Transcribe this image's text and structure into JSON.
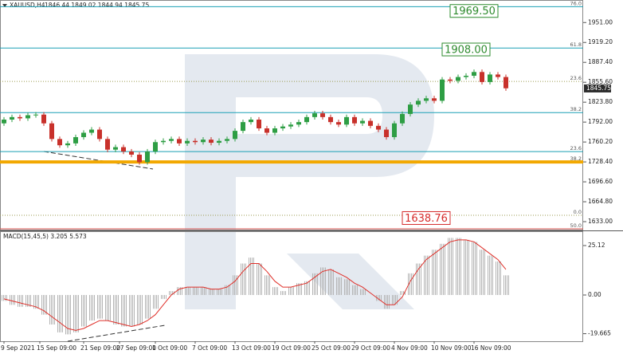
{
  "chart_data": [
    {
      "type": "candlestick",
      "symbol": "XAUUSD,H4",
      "quote": "1846.44 1849.02 1844.94 1845.75",
      "xlim": [
        -0.5,
        72.7
      ],
      "ylim": [
        1619,
        1987
      ],
      "grid": false,
      "up_color": "#2e9e44",
      "down_color": "#c8312b",
      "open": [
        1790,
        1796,
        1800,
        1798,
        1803,
        1804,
        1790,
        1765,
        1755,
        1758,
        1768,
        1775,
        1780,
        1765,
        1748,
        1752,
        1745,
        1740,
        1728,
        1745,
        1760,
        1762,
        1765,
        1758,
        1762,
        1760,
        1764,
        1759,
        1762,
        1765,
        1778,
        1792,
        1796,
        1782,
        1775,
        1782,
        1785,
        1788,
        1792,
        1800,
        1806,
        1800,
        1792,
        1788,
        1800,
        1790,
        1794,
        1786,
        1780,
        1768,
        1790,
        1805,
        1820,
        1826,
        1830,
        1826,
        1860,
        1858,
        1864,
        1866,
        1872,
        1856,
        1868,
        1864
      ],
      "high": [
        1800,
        1804,
        1804,
        1807,
        1808,
        1808,
        1794,
        1769,
        1762,
        1772,
        1779,
        1784,
        1784,
        1769,
        1756,
        1756,
        1749,
        1744,
        1749,
        1764,
        1766,
        1769,
        1769,
        1766,
        1766,
        1768,
        1768,
        1766,
        1769,
        1782,
        1796,
        1800,
        1800,
        1786,
        1786,
        1789,
        1792,
        1796,
        1804,
        1810,
        1810,
        1804,
        1796,
        1804,
        1804,
        1798,
        1798,
        1790,
        1784,
        1794,
        1809,
        1824,
        1830,
        1834,
        1834,
        1864,
        1864,
        1868,
        1870,
        1876,
        1876,
        1872,
        1872,
        1868
      ],
      "low": [
        1786,
        1792,
        1794,
        1794,
        1799,
        1786,
        1761,
        1751,
        1751,
        1754,
        1764,
        1771,
        1761,
        1744,
        1744,
        1741,
        1736,
        1724,
        1724,
        1741,
        1756,
        1758,
        1754,
        1754,
        1756,
        1756,
        1755,
        1755,
        1758,
        1761,
        1774,
        1788,
        1778,
        1771,
        1771,
        1778,
        1781,
        1784,
        1788,
        1796,
        1796,
        1788,
        1784,
        1784,
        1786,
        1786,
        1782,
        1776,
        1764,
        1764,
        1786,
        1801,
        1816,
        1822,
        1822,
        1822,
        1854,
        1854,
        1860,
        1862,
        1852,
        1852,
        1860,
        1842
      ],
      "close": [
        1796,
        1800,
        1798,
        1803,
        1804,
        1790,
        1765,
        1755,
        1758,
        1768,
        1775,
        1780,
        1765,
        1748,
        1752,
        1745,
        1740,
        1728,
        1745,
        1760,
        1762,
        1765,
        1758,
        1762,
        1760,
        1764,
        1759,
        1762,
        1765,
        1778,
        1792,
        1796,
        1782,
        1775,
        1782,
        1785,
        1788,
        1792,
        1800,
        1806,
        1800,
        1792,
        1788,
        1800,
        1790,
        1794,
        1786,
        1780,
        1768,
        1790,
        1805,
        1820,
        1826,
        1830,
        1826,
        1860,
        1858,
        1864,
        1866,
        1872,
        1856,
        1868,
        1864,
        1846
      ],
      "yticks": [
        {
          "value": 1951,
          "label": "1951.00"
        },
        {
          "value": 1919.2,
          "label": "1919.20"
        },
        {
          "value": 1887.4,
          "label": "1887.40"
        },
        {
          "value": 1855.6,
          "label": "1855.60"
        },
        {
          "value": 1823.8,
          "label": "1823.80"
        },
        {
          "value": 1792,
          "label": "1792.00"
        },
        {
          "value": 1760.2,
          "label": "1760.20"
        },
        {
          "value": 1728.4,
          "label": "1728.40"
        },
        {
          "value": 1696.6,
          "label": "1696.60"
        },
        {
          "value": 1664.8,
          "label": "1664.80"
        },
        {
          "value": 1633,
          "label": "1633.00"
        }
      ],
      "last": {
        "value": 1845.75,
        "label": "1845.75",
        "color": "#2b2b2b"
      },
      "levels": [
        {
          "label": "76.0",
          "value": 1976.4,
          "color": "#1a9fb5"
        },
        {
          "label": "61.8",
          "value": 1910.3,
          "color": "#1a9fb5"
        },
        {
          "label": "23.6",
          "value": 1856.9,
          "color": "#9b9b50"
        },
        {
          "label": "38.2",
          "value": 1807.2,
          "color": "#1a9fb5"
        },
        {
          "label": "23.6",
          "value": 1744.9,
          "color": "#1a9fb5"
        },
        {
          "label": "38.2",
          "value": 1728.4,
          "color": "#f2a800"
        },
        {
          "label": "0.0",
          "value": 1643.2,
          "color": "#9b9b50"
        },
        {
          "label": "50.0",
          "value": 1621.6,
          "color": "#d9534f"
        }
      ],
      "targets": [
        {
          "label": "1969.50",
          "value": 1969.5,
          "color": "#2e8b2e",
          "at": 59
        },
        {
          "label": "1908.00",
          "value": 1908,
          "color": "#2e8b2e",
          "at": 58
        },
        {
          "label": "1638.76",
          "value": 1638.76,
          "color": "#d62c2c",
          "at": 53
        }
      ]
    },
    {
      "type": "macd",
      "title": "MACD(15,45,5) 3.205 5.573",
      "xlim": [
        -0.5,
        72.7
      ],
      "ylim": [
        -23.5,
        32
      ],
      "hist_color": "#b4b4b4",
      "signal_color": "#e0302a",
      "histogram": [
        -3,
        -5,
        -6,
        -6,
        -7,
        -10,
        -15,
        -19,
        -20,
        -19,
        -16,
        -13,
        -12,
        -13,
        -15,
        -16,
        -16,
        -15,
        -12,
        -7,
        -2,
        2,
        4,
        4,
        4,
        4,
        3,
        3,
        5,
        10,
        16,
        19,
        16,
        10,
        4,
        2,
        4,
        6,
        7,
        11,
        14,
        13,
        9,
        8,
        5,
        3,
        0,
        -3,
        -7,
        -5,
        2,
        11,
        16,
        20,
        23,
        26,
        29,
        29,
        28,
        27,
        23,
        20,
        17,
        10
      ],
      "signal": [
        -2,
        -3,
        -4,
        -5,
        -6,
        -8,
        -11,
        -14,
        -17,
        -18,
        -17,
        -15,
        -13,
        -13,
        -14,
        -15,
        -16,
        -15,
        -13,
        -10,
        -5,
        0,
        3,
        4,
        4,
        4,
        3,
        3,
        4,
        7,
        12,
        16,
        16,
        12,
        7,
        4,
        4,
        5,
        6,
        9,
        12,
        13,
        11,
        9,
        6,
        4,
        1,
        -2,
        -5,
        -5,
        -1,
        7,
        13,
        18,
        21,
        24,
        27,
        28,
        28,
        27,
        24,
        21,
        18,
        13
      ],
      "yticks": [
        25.12,
        {
          "value": 0,
          "label": "0.00"
        },
        -19.665
      ],
      "xticks": [
        {
          "value": 0,
          "label": "9 Sep 2021"
        },
        {
          "value": 4.5,
          "label": "15 Sep 09:00"
        },
        {
          "value": 10,
          "label": "21 Sep 09:00"
        },
        {
          "value": 14.5,
          "label": "27 Sep 09:00"
        },
        {
          "value": 19,
          "label": "1 Oct 09:00"
        },
        {
          "value": 24,
          "label": "7 Oct 09:00"
        },
        {
          "value": 29,
          "label": "13 Oct 09:00"
        },
        {
          "value": 34,
          "label": "19 Oct 09:00"
        },
        {
          "value": 39,
          "label": "25 Oct 09:00"
        },
        {
          "value": 44,
          "label": "29 Oct 09:00"
        },
        {
          "value": 49,
          "label": "4 Nov 09:00"
        },
        {
          "value": 54,
          "label": "10 Nov 09:00"
        },
        {
          "value": 59,
          "label": "16 Nov 09:00"
        }
      ]
    }
  ]
}
